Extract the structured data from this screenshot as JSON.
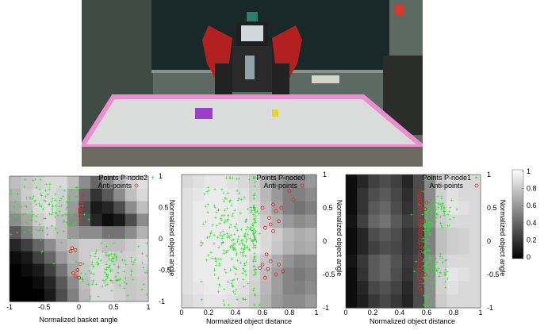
{
  "photo": {
    "description_icon": "robot-scene-photo",
    "colors": {
      "wall": "#5f6b63",
      "whiteboard": "#1a2a2a",
      "table_top": "#d9dcda",
      "table_edge": "#e98fcf",
      "robot_arm": "#b2201f",
      "robot_body": "#2a2a2a",
      "basket": "#9a3fc8",
      "object": "#e4d23a",
      "floor": "#6c6a60"
    }
  },
  "colormap": {
    "ticks": [
      "1",
      "0.8",
      "0.6",
      "0.4",
      "0.2",
      "0"
    ]
  },
  "chart_data": [
    {
      "type": "scatter",
      "panel": "P-node2",
      "xlabel": "Normalized basket angle",
      "ylabel": "Normalized object angle",
      "xlim": [
        -1,
        1
      ],
      "ylim": [
        -1,
        1
      ],
      "xticks": [
        "-1",
        "-0.5",
        "0",
        "0.5",
        "1"
      ],
      "yticks": [
        "1",
        "0.5",
        "0",
        "-0.5",
        "-1"
      ],
      "legend": {
        "position": "top-right",
        "points_label": "Points P-node2",
        "anti_label": "Anti-points"
      },
      "background_heatmap": [
        [
          0.75,
          0.78,
          0.82,
          0.85,
          0.85,
          0.75,
          0.55,
          0.4,
          0.55,
          0.7,
          0.82,
          0.88
        ],
        [
          0.7,
          0.8,
          0.85,
          0.85,
          0.82,
          0.65,
          0.4,
          0.2,
          0.35,
          0.55,
          0.75,
          0.85
        ],
        [
          0.65,
          0.75,
          0.85,
          0.88,
          0.8,
          0.6,
          0.3,
          0.1,
          0.15,
          0.3,
          0.55,
          0.75
        ],
        [
          0.55,
          0.65,
          0.8,
          0.85,
          0.75,
          0.55,
          0.35,
          0.15,
          0.05,
          0.1,
          0.3,
          0.55
        ],
        [
          0.35,
          0.5,
          0.7,
          0.8,
          0.75,
          0.6,
          0.55,
          0.55,
          0.45,
          0.45,
          0.55,
          0.7
        ],
        [
          0.15,
          0.25,
          0.4,
          0.55,
          0.7,
          0.75,
          0.8,
          0.8,
          0.75,
          0.75,
          0.8,
          0.85
        ],
        [
          0.05,
          0.1,
          0.25,
          0.4,
          0.6,
          0.7,
          0.8,
          0.85,
          0.82,
          0.8,
          0.82,
          0.85
        ],
        [
          0.0,
          0.05,
          0.1,
          0.25,
          0.45,
          0.65,
          0.78,
          0.85,
          0.85,
          0.82,
          0.8,
          0.82
        ],
        [
          0.0,
          0.0,
          0.05,
          0.15,
          0.35,
          0.55,
          0.75,
          0.85,
          0.85,
          0.8,
          0.78,
          0.8
        ],
        [
          0.0,
          0.0,
          0.0,
          0.1,
          0.3,
          0.5,
          0.72,
          0.85,
          0.85,
          0.82,
          0.78,
          0.8
        ]
      ],
      "points_clusters": [
        {
          "cx": -0.45,
          "cy": 0.45,
          "sx": 0.28,
          "sy": 0.25,
          "n": 130
        },
        {
          "cx": 0.45,
          "cy": -0.45,
          "sx": 0.28,
          "sy": 0.22,
          "n": 130
        }
      ],
      "anti_points": [
        [
          0.02,
          0.55
        ],
        [
          0.03,
          0.5
        ],
        [
          0.01,
          0.42
        ],
        [
          0.02,
          0.37
        ],
        [
          0.04,
          0.6
        ],
        [
          0.03,
          0.3
        ],
        [
          -0.1,
          -0.15
        ],
        [
          -0.05,
          -0.18
        ],
        [
          -0.08,
          -0.55
        ],
        [
          -0.05,
          -0.6
        ],
        [
          -0.02,
          -0.5
        ],
        [
          0.02,
          -0.4
        ],
        [
          0.05,
          0.7
        ],
        [
          0.01,
          0.47
        ],
        [
          -0.12,
          -0.2
        ],
        [
          0.0,
          -0.62
        ]
      ]
    },
    {
      "type": "scatter",
      "panel": "P-node0",
      "xlabel": "Normalized object distance",
      "ylabel": "Normalized object angle",
      "xlim": [
        0,
        1
      ],
      "ylim": [
        -1,
        1
      ],
      "xticks": [
        "0",
        "0.2",
        "0.4",
        "0.6",
        "0.8",
        "1"
      ],
      "yticks": [
        "1",
        "0.5",
        "0",
        "-0.5",
        "-1"
      ],
      "legend": {
        "position": "top-right",
        "points_label": "Points P-node0",
        "anti_label": "Anti-points"
      },
      "background_heatmap": [
        [
          0.85,
          0.88,
          0.9,
          0.9,
          0.88,
          0.85,
          0.8,
          0.7,
          0.6,
          0.55,
          0.55,
          0.6
        ],
        [
          0.88,
          0.9,
          0.92,
          0.92,
          0.9,
          0.88,
          0.82,
          0.72,
          0.6,
          0.5,
          0.5,
          0.55
        ],
        [
          0.88,
          0.92,
          0.92,
          0.92,
          0.92,
          0.9,
          0.85,
          0.75,
          0.62,
          0.5,
          0.45,
          0.5
        ],
        [
          0.88,
          0.92,
          0.92,
          0.92,
          0.92,
          0.9,
          0.88,
          0.8,
          0.7,
          0.6,
          0.55,
          0.58
        ],
        [
          0.88,
          0.92,
          0.92,
          0.92,
          0.92,
          0.92,
          0.9,
          0.85,
          0.8,
          0.72,
          0.68,
          0.7
        ],
        [
          0.88,
          0.92,
          0.92,
          0.92,
          0.92,
          0.92,
          0.9,
          0.85,
          0.78,
          0.7,
          0.66,
          0.68
        ],
        [
          0.88,
          0.92,
          0.92,
          0.92,
          0.92,
          0.9,
          0.86,
          0.78,
          0.68,
          0.58,
          0.52,
          0.55
        ],
        [
          0.88,
          0.92,
          0.92,
          0.92,
          0.92,
          0.9,
          0.84,
          0.74,
          0.62,
          0.52,
          0.48,
          0.52
        ],
        [
          0.88,
          0.9,
          0.92,
          0.92,
          0.9,
          0.88,
          0.82,
          0.72,
          0.62,
          0.52,
          0.5,
          0.55
        ],
        [
          0.85,
          0.88,
          0.9,
          0.9,
          0.88,
          0.85,
          0.8,
          0.7,
          0.6,
          0.55,
          0.55,
          0.6
        ]
      ],
      "points_clusters": [
        {
          "cx": 0.38,
          "cy": 0.0,
          "sx": 0.11,
          "sy": 0.48,
          "n": 300,
          "xmax": 0.58,
          "band": 0.54
        }
      ],
      "anti_points": [
        [
          0.6,
          0.5
        ],
        [
          0.65,
          0.35
        ],
        [
          0.7,
          0.45
        ],
        [
          0.68,
          0.55
        ],
        [
          0.72,
          0.3
        ],
        [
          0.62,
          0.2
        ],
        [
          0.66,
          0.25
        ],
        [
          0.74,
          0.5
        ],
        [
          0.6,
          -0.35
        ],
        [
          0.64,
          -0.42
        ],
        [
          0.7,
          -0.5
        ],
        [
          0.66,
          -0.3
        ],
        [
          0.75,
          -0.45
        ],
        [
          0.62,
          -0.55
        ],
        [
          0.58,
          -0.4
        ],
        [
          0.72,
          -0.35
        ],
        [
          0.8,
          0.75
        ],
        [
          0.83,
          0.62
        ],
        [
          0.68,
          0.15
        ],
        [
          0.63,
          -0.2
        ]
      ]
    },
    {
      "type": "scatter",
      "panel": "P-node1",
      "xlabel": "Normalized object distance",
      "ylabel": "Normalized object angle",
      "xlim": [
        0,
        1
      ],
      "ylim": [
        -1,
        1
      ],
      "xticks": [
        "0",
        "0.2",
        "0.4",
        "0.6",
        "0.8",
        "1"
      ],
      "yticks": [
        "1",
        "0.5",
        "0",
        "-0.5",
        "-1"
      ],
      "legend": {
        "position": "top-right",
        "points_label": "Points P-node1",
        "anti_label": "Anti-points"
      },
      "background_heatmap": [
        [
          0.05,
          0.15,
          0.25,
          0.3,
          0.25,
          0.15,
          0.3,
          0.55,
          0.8,
          0.85,
          0.85,
          0.85
        ],
        [
          0.05,
          0.2,
          0.3,
          0.35,
          0.28,
          0.18,
          0.3,
          0.55,
          0.82,
          0.88,
          0.85,
          0.85
        ],
        [
          0.05,
          0.2,
          0.35,
          0.4,
          0.3,
          0.2,
          0.3,
          0.55,
          0.82,
          0.9,
          0.88,
          0.85
        ],
        [
          0.08,
          0.25,
          0.4,
          0.45,
          0.35,
          0.25,
          0.3,
          0.55,
          0.8,
          0.85,
          0.85,
          0.85
        ],
        [
          0.05,
          0.15,
          0.3,
          0.35,
          0.3,
          0.2,
          0.25,
          0.5,
          0.75,
          0.8,
          0.82,
          0.85
        ],
        [
          0.05,
          0.15,
          0.25,
          0.3,
          0.28,
          0.2,
          0.25,
          0.5,
          0.75,
          0.8,
          0.82,
          0.85
        ],
        [
          0.08,
          0.22,
          0.35,
          0.4,
          0.32,
          0.22,
          0.28,
          0.55,
          0.8,
          0.85,
          0.85,
          0.85
        ],
        [
          0.05,
          0.2,
          0.35,
          0.4,
          0.3,
          0.2,
          0.3,
          0.55,
          0.82,
          0.9,
          0.88,
          0.85
        ],
        [
          0.05,
          0.15,
          0.28,
          0.32,
          0.26,
          0.16,
          0.3,
          0.55,
          0.82,
          0.88,
          0.85,
          0.85
        ],
        [
          0.05,
          0.12,
          0.22,
          0.28,
          0.22,
          0.14,
          0.3,
          0.55,
          0.8,
          0.85,
          0.85,
          0.85
        ]
      ],
      "points_clusters": [
        {
          "cx": 0.6,
          "cy": 0.0,
          "sx": 0.02,
          "sy": 0.45,
          "n": 90
        },
        {
          "cx": 0.68,
          "cy": 0.45,
          "sx": 0.07,
          "sy": 0.12,
          "n": 50
        },
        {
          "cx": 0.68,
          "cy": -0.45,
          "sx": 0.07,
          "sy": 0.12,
          "n": 50
        }
      ],
      "anti_points_line": {
        "x": 0.55,
        "from": -0.75,
        "to": 0.75,
        "n": 34
      },
      "anti_points": [
        [
          0.59,
          0.48
        ],
        [
          0.6,
          0.58
        ],
        [
          0.59,
          -0.5
        ],
        [
          0.58,
          0.3
        ]
      ]
    }
  ]
}
